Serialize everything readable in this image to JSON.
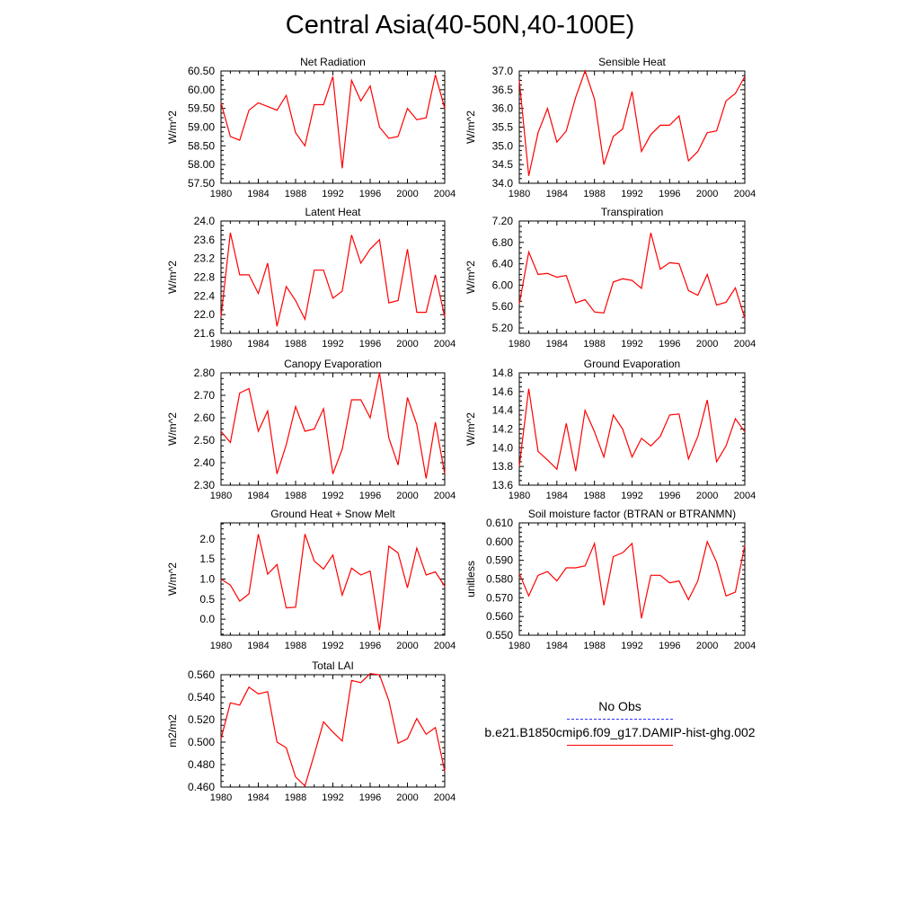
{
  "title": "Central Asia(40-50N,40-100E)",
  "legend": {
    "obs_label": "No Obs",
    "model_label": "b.e21.B1850cmip6.f09_g17.DAMIP-hist-ghg.002",
    "obs_color": "#3333ff",
    "model_color": "#ff0000"
  },
  "chart_data": [
    {
      "type": "line",
      "title": "Net Radiation",
      "ylabel": "W/m^2",
      "x": [
        1980,
        1981,
        1982,
        1983,
        1984,
        1985,
        1986,
        1987,
        1988,
        1989,
        1990,
        1991,
        1992,
        1993,
        1994,
        1995,
        1996,
        1997,
        1998,
        1999,
        2000,
        2001,
        2002,
        2003,
        2004
      ],
      "xlim": [
        1980,
        2004
      ],
      "xticks": [
        "1980",
        "1984",
        "1988",
        "1992",
        "1996",
        "2000",
        "2004"
      ],
      "ylim": [
        57.5,
        60.5
      ],
      "yticks": [
        "57.50",
        "58.00",
        "58.50",
        "59.00",
        "59.50",
        "60.00",
        "60.50"
      ],
      "series": [
        {
          "values": [
            59.65,
            58.75,
            58.65,
            59.45,
            59.65,
            59.55,
            59.45,
            59.85,
            58.85,
            58.5,
            59.6,
            59.6,
            60.35,
            57.9,
            60.25,
            59.7,
            60.1,
            59.0,
            58.7,
            58.75,
            59.5,
            59.2,
            59.25,
            60.4,
            59.5
          ]
        }
      ]
    },
    {
      "type": "line",
      "title": "Sensible Heat",
      "ylabel": "W/m^2",
      "x": [
        1980,
        1981,
        1982,
        1983,
        1984,
        1985,
        1986,
        1987,
        1988,
        1989,
        1990,
        1991,
        1992,
        1993,
        1994,
        1995,
        1996,
        1997,
        1998,
        1999,
        2000,
        2001,
        2002,
        2003,
        2004
      ],
      "xlim": [
        1980,
        2004
      ],
      "xticks": [
        "1980",
        "1984",
        "1988",
        "1992",
        "1996",
        "2000",
        "2004"
      ],
      "ylim": [
        34.0,
        37.0
      ],
      "yticks": [
        "34.0",
        "34.5",
        "35.0",
        "35.5",
        "36.0",
        "36.5",
        "37.0"
      ],
      "series": [
        {
          "values": [
            36.75,
            34.2,
            35.35,
            36.0,
            35.1,
            35.4,
            36.3,
            37.0,
            36.25,
            34.5,
            35.25,
            35.45,
            36.45,
            34.85,
            35.3,
            35.55,
            35.55,
            35.8,
            34.6,
            34.85,
            35.35,
            35.4,
            36.2,
            36.4,
            36.85
          ]
        }
      ]
    },
    {
      "type": "line",
      "title": "Latent Heat",
      "ylabel": "W/m^2",
      "x": [
        1980,
        1981,
        1982,
        1983,
        1984,
        1985,
        1986,
        1987,
        1988,
        1989,
        1990,
        1991,
        1992,
        1993,
        1994,
        1995,
        1996,
        1997,
        1998,
        1999,
        2000,
        2001,
        2002,
        2003,
        2004
      ],
      "xlim": [
        1980,
        2004
      ],
      "xticks": [
        "1980",
        "1984",
        "1988",
        "1992",
        "1996",
        "2000",
        "2004"
      ],
      "ylim": [
        21.6,
        24.0
      ],
      "yticks": [
        "21.6",
        "22.0",
        "22.4",
        "22.8",
        "23.2",
        "23.6",
        "24.0"
      ],
      "series": [
        {
          "values": [
            21.95,
            23.75,
            22.85,
            22.85,
            22.45,
            23.1,
            21.75,
            22.6,
            22.3,
            21.9,
            22.95,
            22.95,
            22.35,
            22.5,
            23.7,
            23.1,
            23.4,
            23.6,
            22.25,
            22.3,
            23.4,
            22.05,
            22.05,
            22.85,
            21.95
          ]
        }
      ]
    },
    {
      "type": "line",
      "title": "Transpiration",
      "ylabel": "W/m^2",
      "x": [
        1980,
        1981,
        1982,
        1983,
        1984,
        1985,
        1986,
        1987,
        1988,
        1989,
        1990,
        1991,
        1992,
        1993,
        1994,
        1995,
        1996,
        1997,
        1998,
        1999,
        2000,
        2001,
        2002,
        2003,
        2004
      ],
      "xlim": [
        1980,
        2004
      ],
      "xticks": [
        "1980",
        "1984",
        "1988",
        "1992",
        "1996",
        "2000",
        "2004"
      ],
      "ylim": [
        5.1,
        7.2
      ],
      "yticks": [
        "5.20",
        "5.60",
        "6.00",
        "6.40",
        "6.80",
        "7.20"
      ],
      "series": [
        {
          "values": [
            5.65,
            6.62,
            6.2,
            6.22,
            6.15,
            6.18,
            5.67,
            5.73,
            5.5,
            5.48,
            6.06,
            6.12,
            6.09,
            5.94,
            6.98,
            6.3,
            6.42,
            6.4,
            5.9,
            5.81,
            6.2,
            5.63,
            5.68,
            5.95,
            5.38
          ]
        }
      ]
    },
    {
      "type": "line",
      "title": "Canopy Evaporation",
      "ylabel": "W/m^2",
      "x": [
        1980,
        1981,
        1982,
        1983,
        1984,
        1985,
        1986,
        1987,
        1988,
        1989,
        1990,
        1991,
        1992,
        1993,
        1994,
        1995,
        1996,
        1997,
        1998,
        1999,
        2000,
        2001,
        2002,
        2003,
        2004
      ],
      "xlim": [
        1980,
        2004
      ],
      "xticks": [
        "1980",
        "1984",
        "1988",
        "1992",
        "1996",
        "2000",
        "2004"
      ],
      "ylim": [
        2.3,
        2.8
      ],
      "yticks": [
        "2.30",
        "2.40",
        "2.50",
        "2.60",
        "2.70",
        "2.80"
      ],
      "series": [
        {
          "values": [
            2.54,
            2.49,
            2.71,
            2.73,
            2.54,
            2.63,
            2.35,
            2.48,
            2.65,
            2.54,
            2.55,
            2.64,
            2.35,
            2.46,
            2.68,
            2.68,
            2.6,
            2.8,
            2.51,
            2.39,
            2.69,
            2.57,
            2.33,
            2.58,
            2.35
          ]
        }
      ]
    },
    {
      "type": "line",
      "title": "Ground Evaporation",
      "ylabel": "W/m^2",
      "x": [
        1980,
        1981,
        1982,
        1983,
        1984,
        1985,
        1986,
        1987,
        1988,
        1989,
        1990,
        1991,
        1992,
        1993,
        1994,
        1995,
        1996,
        1997,
        1998,
        1999,
        2000,
        2001,
        2002,
        2003,
        2004
      ],
      "xlim": [
        1980,
        2004
      ],
      "xticks": [
        "1980",
        "1984",
        "1988",
        "1992",
        "1996",
        "2000",
        "2004"
      ],
      "ylim": [
        13.6,
        14.8
      ],
      "yticks": [
        "13.6",
        "13.8",
        "14.0",
        "14.2",
        "14.4",
        "14.6",
        "14.8"
      ],
      "series": [
        {
          "values": [
            13.8,
            14.63,
            13.96,
            13.87,
            13.77,
            14.26,
            13.75,
            14.4,
            14.17,
            13.9,
            14.35,
            14.2,
            13.9,
            14.1,
            14.02,
            14.12,
            14.35,
            14.36,
            13.88,
            14.12,
            14.51,
            13.85,
            14.02,
            14.31,
            14.17
          ]
        }
      ]
    },
    {
      "type": "line",
      "title": "Ground Heat + Snow Melt",
      "ylabel": "W/m^2",
      "x": [
        1980,
        1981,
        1982,
        1983,
        1984,
        1985,
        1986,
        1987,
        1988,
        1989,
        1990,
        1991,
        1992,
        1993,
        1994,
        1995,
        1996,
        1997,
        1998,
        1999,
        2000,
        2001,
        2002,
        2003,
        2004
      ],
      "xlim": [
        1980,
        2004
      ],
      "xticks": [
        "1980",
        "1984",
        "1988",
        "1992",
        "1996",
        "2000",
        "2004"
      ],
      "ylim": [
        -0.4,
        2.4
      ],
      "yticks": [
        "0.0",
        "0.5",
        "1.0",
        "1.5",
        "2.0"
      ],
      "series": [
        {
          "values": [
            1.0,
            0.85,
            0.45,
            0.63,
            2.12,
            1.12,
            1.36,
            0.28,
            0.3,
            2.12,
            1.45,
            1.25,
            1.6,
            0.6,
            1.27,
            1.1,
            1.2,
            -0.28,
            1.82,
            1.65,
            0.78,
            1.77,
            1.1,
            1.18,
            0.82
          ]
        }
      ]
    },
    {
      "type": "line",
      "title": "Soil moisture factor (BTRAN or BTRANMN)",
      "ylabel": "unitless",
      "x": [
        1980,
        1981,
        1982,
        1983,
        1984,
        1985,
        1986,
        1987,
        1988,
        1989,
        1990,
        1991,
        1992,
        1993,
        1994,
        1995,
        1996,
        1997,
        1998,
        1999,
        2000,
        2001,
        2002,
        2003,
        2004
      ],
      "xlim": [
        1980,
        2004
      ],
      "xticks": [
        "1980",
        "1984",
        "1988",
        "1992",
        "1996",
        "2000",
        "2004"
      ],
      "ylim": [
        0.55,
        0.61
      ],
      "yticks": [
        "0.550",
        "0.560",
        "0.570",
        "0.580",
        "0.590",
        "0.600",
        "0.610"
      ],
      "series": [
        {
          "values": [
            0.583,
            0.571,
            0.582,
            0.584,
            0.579,
            0.586,
            0.586,
            0.587,
            0.599,
            0.566,
            0.592,
            0.594,
            0.599,
            0.559,
            0.582,
            0.582,
            0.578,
            0.579,
            0.569,
            0.579,
            0.6,
            0.589,
            0.571,
            0.573,
            0.598
          ]
        }
      ]
    },
    {
      "type": "line",
      "title": "Total LAI",
      "ylabel": "m2/m2",
      "x": [
        1980,
        1981,
        1982,
        1983,
        1984,
        1985,
        1986,
        1987,
        1988,
        1989,
        1990,
        1991,
        1992,
        1993,
        1994,
        1995,
        1996,
        1997,
        1998,
        1999,
        2000,
        2001,
        2002,
        2003,
        2004
      ],
      "xlim": [
        1980,
        2004
      ],
      "xticks": [
        "1980",
        "1984",
        "1988",
        "1992",
        "1996",
        "2000",
        "2004"
      ],
      "ylim": [
        0.46,
        0.56
      ],
      "yticks": [
        "0.460",
        "0.480",
        "0.500",
        "0.520",
        "0.540",
        "0.560"
      ],
      "series": [
        {
          "values": [
            0.503,
            0.535,
            0.533,
            0.549,
            0.543,
            0.545,
            0.5,
            0.495,
            0.469,
            0.461,
            0.489,
            0.518,
            0.509,
            0.501,
            0.555,
            0.553,
            0.561,
            0.56,
            0.537,
            0.499,
            0.503,
            0.521,
            0.507,
            0.513,
            0.474
          ]
        }
      ]
    }
  ]
}
